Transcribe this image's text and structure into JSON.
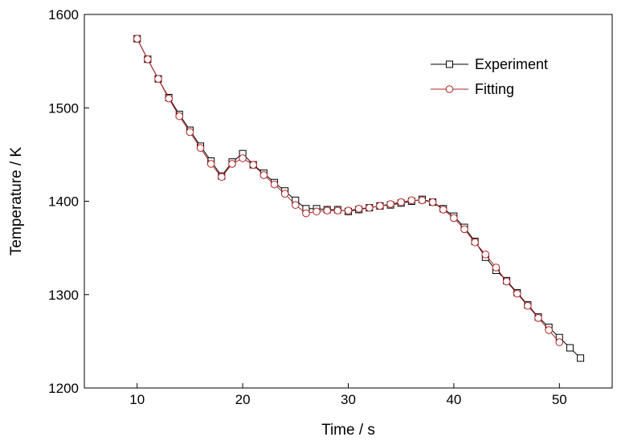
{
  "chart_data": {
    "type": "line",
    "title": "",
    "xlabel": "Time / s",
    "ylabel": "Temperature / K",
    "xlim": [
      5,
      55
    ],
    "ylim": [
      1200,
      1600
    ],
    "xticks": [
      10,
      20,
      30,
      40,
      50
    ],
    "yticks": [
      1200,
      1300,
      1400,
      1500,
      1600
    ],
    "grid": false,
    "legend": "top-right",
    "series": [
      {
        "name": "Experiment",
        "marker": "square",
        "color": "#000000",
        "x": [
          10,
          11,
          12,
          13,
          14,
          15,
          16,
          17,
          18,
          19,
          20,
          21,
          22,
          23,
          24,
          25,
          26,
          27,
          28,
          29,
          30,
          31,
          32,
          33,
          34,
          35,
          36,
          37,
          38,
          39,
          40,
          41,
          42,
          43,
          44,
          45,
          46,
          47,
          48,
          49,
          50,
          51,
          52
        ],
        "y": [
          1574,
          1552,
          1531,
          1511,
          1493,
          1476,
          1459,
          1443,
          1427,
          1442,
          1451,
          1439,
          1430,
          1420,
          1411,
          1401,
          1392,
          1392,
          1391,
          1391,
          1389,
          1391,
          1393,
          1395,
          1396,
          1398,
          1400,
          1402,
          1399,
          1392,
          1384,
          1372,
          1357,
          1340,
          1326,
          1315,
          1302,
          1289,
          1276,
          1265,
          1254,
          1243,
          1232
        ]
      },
      {
        "name": "Fitting",
        "marker": "circle",
        "color": "#b22222",
        "x": [
          10,
          11,
          12,
          13,
          14,
          15,
          16,
          17,
          18,
          19,
          20,
          21,
          22,
          23,
          24,
          25,
          26,
          27,
          28,
          29,
          30,
          31,
          32,
          33,
          34,
          35,
          36,
          37,
          38,
          39,
          40,
          41,
          42,
          43,
          44,
          45,
          46,
          47,
          48,
          49,
          50
        ],
        "y": [
          1574,
          1552,
          1531,
          1510,
          1491,
          1474,
          1457,
          1440,
          1426,
          1440,
          1446,
          1439,
          1428,
          1418,
          1408,
          1396,
          1387,
          1389,
          1390,
          1390,
          1390,
          1392,
          1393,
          1395,
          1397,
          1399,
          1401,
          1401,
          1399,
          1391,
          1382,
          1370,
          1356,
          1343,
          1329,
          1314,
          1301,
          1288,
          1275,
          1262,
          1249
        ]
      }
    ]
  }
}
